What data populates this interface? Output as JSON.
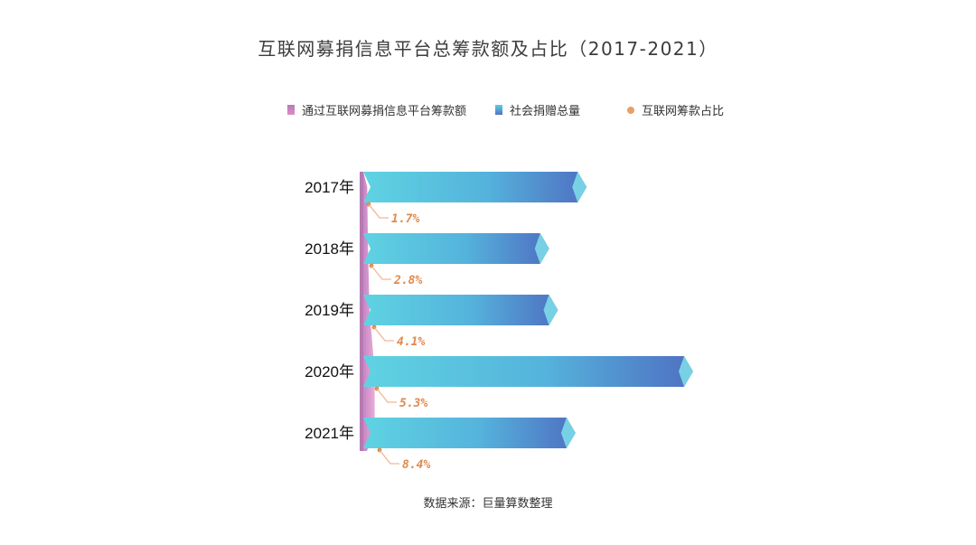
{
  "chart_data": {
    "type": "bar",
    "title": "互联网募捐信息平台总筹款额及占比（2017-2021）",
    "legend": [
      {
        "label": "通过互联网募捐信息平台筹款额",
        "color": "#b879b8",
        "shape": "square"
      },
      {
        "label": "社会捐赠总量",
        "color": "#4a9fd2",
        "shape": "square"
      },
      {
        "label": "互联网筹款占比",
        "color": "#e7a066",
        "shape": "circle"
      }
    ],
    "categories": [
      "2017年",
      "2018年",
      "2019年",
      "2020年",
      "2021年"
    ],
    "series": [
      {
        "name": "社会捐赠总量",
        "values": [
          1526,
          1270,
          1330,
          2253,
          1450
        ]
      },
      {
        "name": "通过互联网募捐信息平台筹款额",
        "values": [
          26,
          36,
          55,
          119,
          120
        ]
      },
      {
        "name": "互联网筹款占比",
        "values": [
          1.7,
          2.8,
          4.1,
          5.3,
          8.4
        ],
        "labels": [
          "1.7%",
          "2.8%",
          "4.1%",
          "5.3%",
          "8.4%"
        ]
      }
    ],
    "orientation": "horizontal",
    "legend_position": "top",
    "grid": false
  },
  "colors": {
    "bar_light": "#5fd0e0",
    "bar_dark": "#4f74c4",
    "pink_area": "#d98fc4",
    "pink_axis": "#b679b3",
    "percent": "#e08a4d"
  },
  "source": "数据来源：巨量算数整理"
}
